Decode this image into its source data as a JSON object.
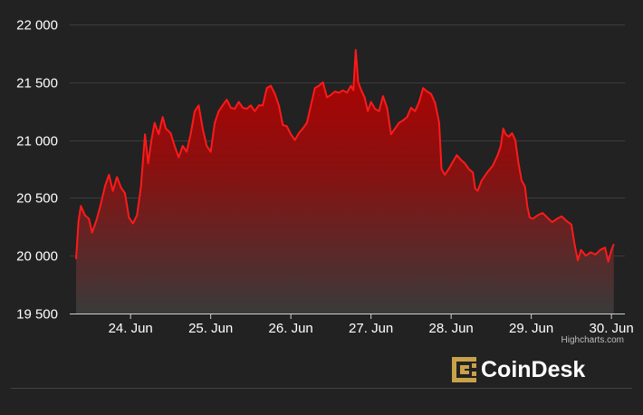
{
  "chart_data": {
    "type": "area",
    "title": "",
    "xlabel": "",
    "ylabel": "",
    "x_tick_labels": [
      "24. Jun",
      "25. Jun",
      "26. Jun",
      "27. Jun",
      "28. Jun",
      "29. Jun",
      "30. Jun"
    ],
    "y_tick_labels": [
      "22 000",
      "21 500",
      "21 000",
      "20 500",
      "20 000",
      "19 500"
    ],
    "y_ticks": [
      22000,
      21500,
      21000,
      20500,
      20000,
      19500
    ],
    "ylim": [
      19500,
      22000
    ],
    "xlim": [
      23.32,
      30.1
    ],
    "grid": true,
    "legend": "none",
    "colors": {
      "background": "#222222",
      "line": "#ff1a1a",
      "fill_top": "#b30000",
      "fill_bottom": "#3a3a3a",
      "grid": "#3c3c3c"
    },
    "series": [
      {
        "points": [
          [
            23.32,
            19970
          ],
          [
            23.35,
            20300
          ],
          [
            23.38,
            20430
          ],
          [
            23.43,
            20350
          ],
          [
            23.48,
            20320
          ],
          [
            23.52,
            20200
          ],
          [
            23.58,
            20320
          ],
          [
            23.63,
            20450
          ],
          [
            23.68,
            20600
          ],
          [
            23.73,
            20700
          ],
          [
            23.78,
            20560
          ],
          [
            23.83,
            20680
          ],
          [
            23.88,
            20590
          ],
          [
            23.93,
            20540
          ],
          [
            23.98,
            20330
          ],
          [
            24.03,
            20280
          ],
          [
            24.08,
            20350
          ],
          [
            24.13,
            20600
          ],
          [
            24.18,
            21050
          ],
          [
            24.22,
            20800
          ],
          [
            24.26,
            21000
          ],
          [
            24.3,
            21150
          ],
          [
            24.35,
            21050
          ],
          [
            24.4,
            21200
          ],
          [
            24.44,
            21100
          ],
          [
            24.5,
            21060
          ],
          [
            24.55,
            20950
          ],
          [
            24.6,
            20850
          ],
          [
            24.65,
            20950
          ],
          [
            24.7,
            20900
          ],
          [
            24.75,
            21050
          ],
          [
            24.8,
            21250
          ],
          [
            24.85,
            21300
          ],
          [
            24.9,
            21100
          ],
          [
            24.95,
            20950
          ],
          [
            25.0,
            20900
          ],
          [
            25.05,
            21150
          ],
          [
            25.1,
            21250
          ],
          [
            25.15,
            21300
          ],
          [
            25.2,
            21350
          ],
          [
            25.25,
            21280
          ],
          [
            25.3,
            21270
          ],
          [
            25.35,
            21330
          ],
          [
            25.4,
            21280
          ],
          [
            25.45,
            21270
          ],
          [
            25.5,
            21300
          ],
          [
            25.55,
            21250
          ],
          [
            25.6,
            21300
          ],
          [
            25.65,
            21300
          ],
          [
            25.7,
            21450
          ],
          [
            25.75,
            21470
          ],
          [
            25.8,
            21400
          ],
          [
            25.85,
            21300
          ],
          [
            25.9,
            21130
          ],
          [
            25.95,
            21120
          ],
          [
            26.0,
            21050
          ],
          [
            26.05,
            21000
          ],
          [
            26.1,
            21060
          ],
          [
            26.15,
            21100
          ],
          [
            26.2,
            21150
          ],
          [
            26.25,
            21300
          ],
          [
            26.3,
            21450
          ],
          [
            26.35,
            21470
          ],
          [
            26.4,
            21500
          ],
          [
            26.45,
            21370
          ],
          [
            26.5,
            21390
          ],
          [
            26.55,
            21420
          ],
          [
            26.6,
            21410
          ],
          [
            26.65,
            21430
          ],
          [
            26.7,
            21410
          ],
          [
            26.75,
            21470
          ],
          [
            26.78,
            21430
          ],
          [
            26.81,
            21780
          ],
          [
            26.84,
            21500
          ],
          [
            26.88,
            21430
          ],
          [
            26.92,
            21370
          ],
          [
            26.96,
            21250
          ],
          [
            27.0,
            21330
          ],
          [
            27.05,
            21270
          ],
          [
            27.1,
            21250
          ],
          [
            27.15,
            21380
          ],
          [
            27.2,
            21280
          ],
          [
            27.25,
            21050
          ],
          [
            27.3,
            21100
          ],
          [
            27.35,
            21150
          ],
          [
            27.4,
            21170
          ],
          [
            27.45,
            21200
          ],
          [
            27.5,
            21280
          ],
          [
            27.55,
            21250
          ],
          [
            27.6,
            21330
          ],
          [
            27.65,
            21450
          ],
          [
            27.7,
            21420
          ],
          [
            27.75,
            21400
          ],
          [
            27.8,
            21320
          ],
          [
            27.85,
            21150
          ],
          [
            27.88,
            20750
          ],
          [
            27.92,
            20700
          ],
          [
            27.97,
            20750
          ],
          [
            28.02,
            20810
          ],
          [
            28.07,
            20870
          ],
          [
            28.12,
            20830
          ],
          [
            28.17,
            20800
          ],
          [
            28.22,
            20750
          ],
          [
            28.27,
            20720
          ],
          [
            28.3,
            20580
          ],
          [
            28.33,
            20560
          ],
          [
            28.38,
            20650
          ],
          [
            28.45,
            20720
          ],
          [
            28.52,
            20780
          ],
          [
            28.58,
            20870
          ],
          [
            28.62,
            20950
          ],
          [
            28.65,
            21100
          ],
          [
            28.68,
            21050
          ],
          [
            28.72,
            21030
          ],
          [
            28.76,
            21060
          ],
          [
            28.8,
            21000
          ],
          [
            28.84,
            20800
          ],
          [
            28.88,
            20650
          ],
          [
            28.92,
            20600
          ],
          [
            28.95,
            20430
          ],
          [
            28.98,
            20330
          ],
          [
            29.02,
            20320
          ],
          [
            29.08,
            20350
          ],
          [
            29.14,
            20370
          ],
          [
            29.2,
            20330
          ],
          [
            29.26,
            20290
          ],
          [
            29.32,
            20320
          ],
          [
            29.38,
            20340
          ],
          [
            29.44,
            20300
          ],
          [
            29.5,
            20270
          ],
          [
            29.54,
            20100
          ],
          [
            29.58,
            19960
          ],
          [
            29.62,
            20050
          ],
          [
            29.68,
            20000
          ],
          [
            29.74,
            20030
          ],
          [
            29.8,
            20010
          ],
          [
            29.86,
            20050
          ],
          [
            29.92,
            20070
          ],
          [
            29.96,
            19950
          ],
          [
            30.0,
            20050
          ],
          [
            30.03,
            20100
          ]
        ]
      }
    ]
  },
  "credit": "Highcharts.com",
  "brand": {
    "name": "CoinDesk",
    "accent": "#c8a24a"
  }
}
